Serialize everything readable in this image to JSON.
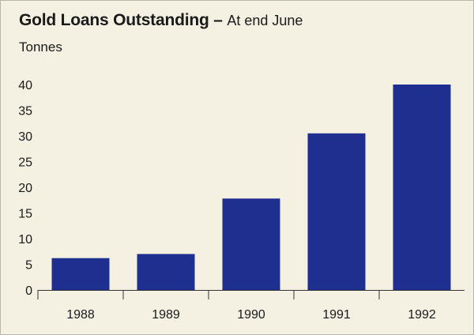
{
  "header": {
    "title": "Gold Loans Outstanding",
    "dash": " – ",
    "subtitle": "At end June",
    "unit": "Tonnes"
  },
  "colors": {
    "bar": "#1f2f8f",
    "background": "#f4f1e2",
    "axis": "#333333"
  },
  "chart_data": {
    "type": "bar",
    "title": "Gold Loans Outstanding – At end June",
    "ylabel": "Tonnes",
    "xlabel": "",
    "categories": [
      "1988",
      "1989",
      "1990",
      "1991",
      "1992"
    ],
    "values": [
      6.2,
      7.0,
      17.8,
      30.5,
      40.0
    ],
    "ylim": [
      0,
      40
    ],
    "yticks": [
      0,
      5,
      10,
      15,
      20,
      25,
      30,
      35,
      40
    ],
    "grid": false,
    "legend": "none"
  }
}
